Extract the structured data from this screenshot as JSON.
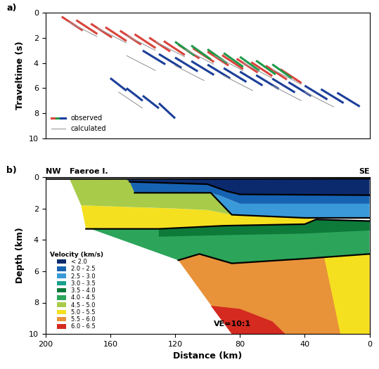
{
  "chart_data": [
    {
      "type": "line",
      "title": "a)",
      "y_label": "Traveltime (s)",
      "xlim": [
        200,
        0
      ],
      "ylim": [
        10,
        0
      ],
      "yticks": [
        0,
        2,
        4,
        6,
        8,
        10
      ],
      "tick_labels": "y",
      "legend": "lower left",
      "series": [
        {
          "name": "observed",
          "colors": [
            "#d9443c",
            "#1f9a4a",
            "#1c3f99"
          ],
          "values": [
            [
              [
                190,
                0.3,
                177,
                1.4
              ],
              [
                181,
                0.58,
                168,
                1.68
              ],
              [
                172,
                0.86,
                159,
                1.96
              ],
              [
                163,
                1.14,
                150,
                2.24
              ],
              [
                154,
                1.42,
                141,
                2.52
              ],
              [
                145,
                1.7,
                132,
                2.8
              ],
              [
                136,
                1.97,
                123,
                3.07
              ],
              [
                127,
                2.25,
                114,
                3.35
              ],
              [
                118,
                2.53,
                105,
                3.63
              ],
              [
                109,
                2.81,
                96,
                3.91
              ],
              [
                100,
                3.09,
                87,
                4.19
              ],
              [
                91,
                3.37,
                78,
                4.47
              ],
              [
                82,
                3.65,
                69,
                4.75
              ],
              [
                73,
                3.93,
                60,
                5.03
              ],
              [
                64,
                4.21,
                51,
                5.31
              ],
              [
                55,
                4.49,
                42,
                5.59
              ]
            ],
            [
              [
                120,
                2.3,
                108,
                3.4
              ],
              [
                110,
                2.6,
                98,
                3.7
              ],
              [
                100,
                2.9,
                88,
                4.0
              ],
              [
                90,
                3.2,
                78,
                4.3
              ],
              [
                80,
                3.5,
                68,
                4.6
              ],
              [
                70,
                3.8,
                58,
                4.9
              ],
              [
                60,
                4.1,
                48,
                5.2
              ]
            ],
            [
              [
                140,
                3.0,
                126,
                4.1
              ],
              [
                130,
                3.28,
                116,
                4.38
              ],
              [
                120,
                3.56,
                106,
                4.66
              ],
              [
                110,
                3.84,
                96,
                4.94
              ],
              [
                100,
                4.12,
                86,
                5.22
              ],
              [
                90,
                4.4,
                76,
                5.5
              ],
              [
                80,
                4.68,
                66,
                5.78
              ],
              [
                70,
                4.96,
                56,
                6.06
              ],
              [
                60,
                5.24,
                46,
                6.34
              ],
              [
                50,
                5.52,
                36,
                6.62
              ],
              [
                40,
                5.8,
                26,
                6.9
              ],
              [
                30,
                6.08,
                16,
                7.18
              ],
              [
                20,
                6.36,
                6,
                7.46
              ],
              [
                160,
                5.2,
                150,
                6.2
              ],
              [
                150,
                6.0,
                140,
                7.0
              ],
              [
                140,
                6.6,
                130,
                7.6
              ],
              [
                130,
                7.2,
                120,
                8.4
              ]
            ]
          ]
        },
        {
          "name": "calculated",
          "color": "#9a9a9a",
          "values": [
            [
              186,
              0.7,
              168,
              1.9
            ],
            [
              168,
              1.2,
              150,
              2.4
            ],
            [
              150,
              1.8,
              132,
              3.0
            ],
            [
              132,
              2.3,
              114,
              3.5
            ],
            [
              114,
              2.9,
              96,
              4.1
            ],
            [
              96,
              3.4,
              78,
              4.6
            ],
            [
              78,
              4.0,
              60,
              5.2
            ],
            [
              60,
              4.5,
              42,
              5.7
            ],
            [
              150,
              3.4,
              132,
              4.6
            ],
            [
              120,
              4.2,
              102,
              5.4
            ],
            [
              90,
              5.0,
              72,
              6.2
            ],
            [
              60,
              5.8,
              42,
              7.0
            ],
            [
              40,
              6.3,
              22,
              7.5
            ],
            [
              155,
              6.3,
              140,
              7.6
            ]
          ]
        }
      ]
    },
    {
      "type": "area",
      "title": "b)",
      "x_label": "Distance (km)",
      "y_label": "Depth (km)",
      "xlim": [
        200,
        0
      ],
      "ylim": [
        10,
        0
      ],
      "xticks": [
        200,
        160,
        120,
        80,
        40,
        0
      ],
      "yticks": [
        0,
        2,
        4,
        6,
        8,
        10
      ],
      "legend": "lower left",
      "legend_title": "Velocity (km/s)",
      "annotations": [
        "NW",
        "Faeroe I.",
        "SE",
        "VE=10:1"
      ],
      "classes": [
        {
          "label": "< 2.0",
          "color": "#0b2a6e"
        },
        {
          "label": "2.0 - 2.5",
          "color": "#1763b3"
        },
        {
          "label": "2.5 - 3.0",
          "color": "#3a9ad9"
        },
        {
          "label": "3.0 - 3.5",
          "color": "#16a08c"
        },
        {
          "label": "3.5 - 4.0",
          "color": "#0e7a3a"
        },
        {
          "label": "4.0 - 4.5",
          "color": "#2ca55a"
        },
        {
          "label": "4.5 - 5.0",
          "color": "#a8cc4a"
        },
        {
          "label": "5.0 - 5.5",
          "color": "#f5e020"
        },
        {
          "label": "5.5 - 6.0",
          "color": "#e8923a"
        },
        {
          "label": "6.0 - 6.5",
          "color": "#d42a20"
        }
      ],
      "regions": [
        {
          "class": 8,
          "points": [
            [
              118,
              5.3
            ],
            [
              105,
              4.9
            ],
            [
              85,
              5.5
            ],
            [
              40,
              5.2
            ],
            [
              0,
              4.9
            ],
            [
              0,
              10
            ],
            [
              85,
              10
            ]
          ]
        },
        {
          "class": 9,
          "points": [
            [
              98,
              8.2
            ],
            [
              80,
              8.4
            ],
            [
              60,
              9.2
            ],
            [
              52,
              10
            ],
            [
              85,
              10
            ]
          ]
        },
        {
          "class": 7,
          "points": [
            [
              28,
              5.1
            ],
            [
              0,
              4.9
            ],
            [
              0,
              10
            ],
            [
              18,
              10
            ]
          ]
        },
        {
          "class": 5,
          "points": [
            [
              172,
              3.3
            ],
            [
              130,
              3.3
            ],
            [
              90,
              3.1
            ],
            [
              40,
              3.0
            ],
            [
              33,
              2.7
            ],
            [
              0,
              2.8
            ],
            [
              0,
              4.9
            ],
            [
              40,
              5.2
            ],
            [
              85,
              5.5
            ],
            [
              105,
              4.9
            ],
            [
              118,
              5.3
            ]
          ]
        },
        {
          "class": 4,
          "points": [
            [
              130,
              3.3
            ],
            [
              90,
              3.1
            ],
            [
              40,
              3.0
            ],
            [
              33,
              2.7
            ],
            [
              0,
              2.8
            ],
            [
              0,
              3.4
            ],
            [
              40,
              3.6
            ],
            [
              90,
              3.7
            ],
            [
              130,
              3.8
            ]
          ]
        },
        {
          "class": 7,
          "points": [
            [
              175,
              3.3
            ],
            [
              178,
              1.8
            ],
            [
              150,
              1.9
            ],
            [
              120,
              2.0
            ],
            [
              100,
              2.1
            ],
            [
              85,
              2.4
            ],
            [
              40,
              2.6
            ],
            [
              33,
              2.7
            ],
            [
              40,
              3.0
            ],
            [
              90,
              3.1
            ],
            [
              130,
              3.3
            ]
          ]
        },
        {
          "class": 6,
          "points": [
            [
              185,
              0.15
            ],
            [
              150,
              0.15
            ],
            [
              148,
              0.3
            ],
            [
              95,
              1.0
            ],
            [
              85,
              2.4
            ],
            [
              100,
              2.1
            ],
            [
              120,
              2.0
            ],
            [
              150,
              1.9
            ],
            [
              178,
              1.8
            ]
          ]
        },
        {
          "class": 2,
          "points": [
            [
              98,
              1.0
            ],
            [
              85,
              2.4
            ],
            [
              40,
              2.6
            ],
            [
              0,
              2.6
            ],
            [
              0,
              1.7
            ],
            [
              80,
              1.7
            ],
            [
              92,
              1.2
            ]
          ]
        },
        {
          "class": 1,
          "points": [
            [
              148,
              0.3
            ],
            [
              100,
              0.45
            ],
            [
              88,
              0.9
            ],
            [
              80,
              1.1
            ],
            [
              0,
              1.15
            ],
            [
              0,
              1.7
            ],
            [
              80,
              1.7
            ],
            [
              92,
              1.2
            ],
            [
              98,
              1.0
            ],
            [
              145,
              1.0
            ]
          ]
        },
        {
          "class": 0,
          "points": [
            [
              150,
              0.15
            ],
            [
              0,
              0.1
            ],
            [
              0,
              1.15
            ],
            [
              80,
              1.1
            ],
            [
              88,
              0.9
            ],
            [
              100,
              0.45
            ],
            [
              148,
              0.3
            ]
          ]
        }
      ],
      "boundaries": [
        [
          [
            200,
            0.12
          ],
          [
            0,
            0.1
          ]
        ],
        [
          [
            148,
            0.3
          ],
          [
            100,
            0.45
          ],
          [
            88,
            0.9
          ],
          [
            80,
            1.1
          ],
          [
            0,
            1.15
          ]
        ],
        [
          [
            145,
            1.0
          ],
          [
            98,
            1.0
          ],
          [
            85,
            2.4
          ],
          [
            40,
            2.6
          ],
          [
            0,
            2.6
          ]
        ],
        [
          [
            175,
            3.3
          ],
          [
            130,
            3.3
          ],
          [
            90,
            3.1
          ],
          [
            40,
            3.0
          ],
          [
            33,
            2.7
          ],
          [
            0,
            2.8
          ]
        ],
        [
          [
            118,
            5.3
          ],
          [
            105,
            4.9
          ],
          [
            85,
            5.5
          ],
          [
            40,
            5.2
          ],
          [
            0,
            4.9
          ]
        ]
      ]
    }
  ]
}
